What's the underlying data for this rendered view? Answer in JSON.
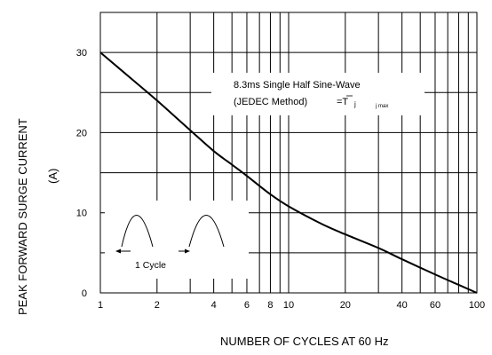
{
  "chart_data": {
    "type": "line",
    "xscale": "log",
    "xlim": [
      1,
      100
    ],
    "ylim": [
      0,
      35
    ],
    "grid": true,
    "xlabel": "NUMBER OF CYCLES AT 60 Hz",
    "ylabel_line1": "PEAK FORWARD SURGE CURRENT",
    "ylabel_line2": "(A)",
    "xticks": [
      1,
      2,
      4,
      6,
      8,
      10,
      20,
      40,
      60,
      100
    ],
    "yticks": [
      0,
      10,
      20,
      30
    ],
    "series": [
      {
        "x": [
          1,
          1.5,
          2,
          3,
          4,
          5,
          6,
          8,
          10,
          15,
          20,
          30,
          40,
          60,
          80,
          100
        ],
        "y": [
          30,
          26.5,
          24,
          20.3,
          17.7,
          16,
          14.6,
          12.3,
          10.8,
          8.6,
          7.3,
          5.6,
          4.2,
          2.3,
          1.0,
          0
        ]
      }
    ],
    "annotation": {
      "line1": "8.3ms Single Half Sine-Wave",
      "line2_prefix": "(JEDEC Method)",
      "line2_eq": "=T",
      "line2_sub1": "j",
      "line2_sub2": "j max"
    },
    "inset": {
      "label": "1 Cycle"
    }
  }
}
